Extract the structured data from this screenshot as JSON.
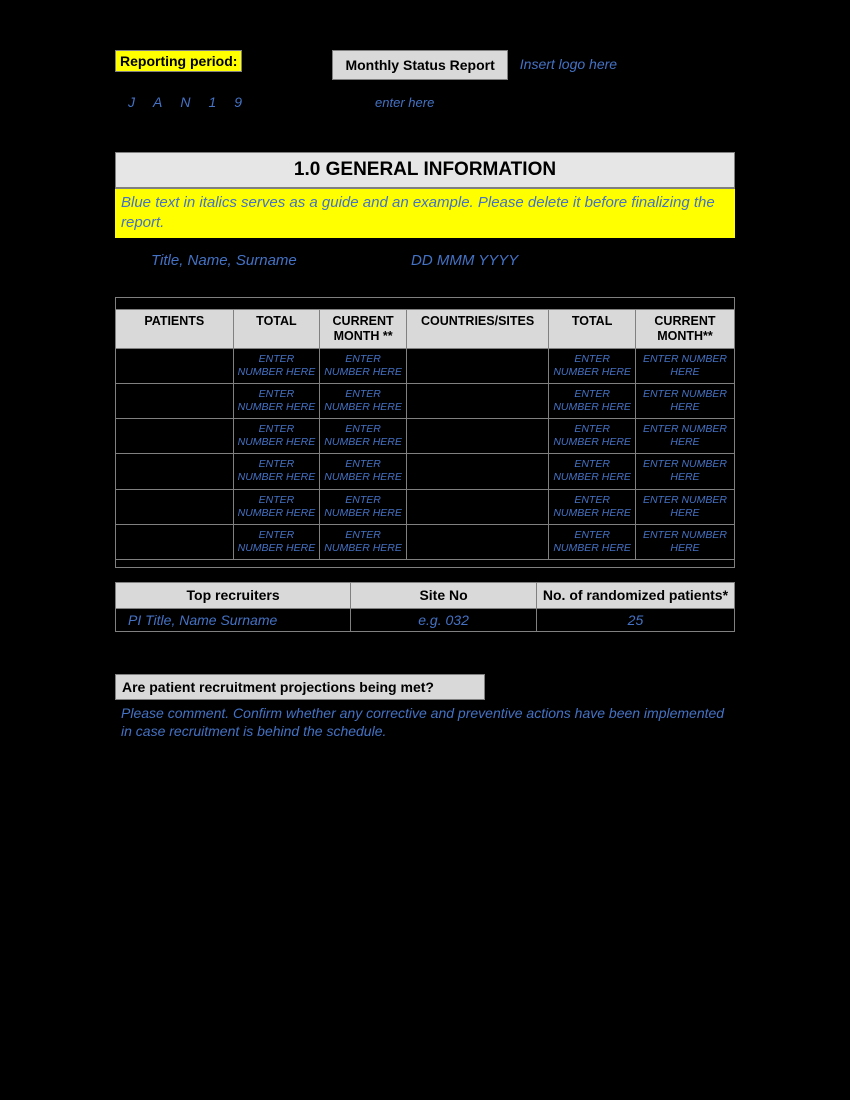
{
  "colors": {
    "bg": "#000000",
    "highlight": "#ffff00",
    "header_bg": "#d9d9d9",
    "section_bg": "#e7e6e6",
    "guide_text": "#4472c4",
    "border": "#808080"
  },
  "header": {
    "reporting_period_label": "Reporting period:",
    "report_title": "Monthly Status Report",
    "logo_placeholder": "Insert logo here",
    "date_chars": "JAN19",
    "enter_here": "enter here"
  },
  "section1": {
    "title": "1.0 GENERAL INFORMATION",
    "guide_text": "Blue text in italics serves as a guide and an example. Please delete it before finalizing the report.",
    "name_placeholder": "Title, Name, Surname",
    "date_placeholder": "DD MMM YYYY"
  },
  "patients_table": {
    "columns": [
      "PATIENTS",
      "TOTAL",
      "CURRENT MONTH **",
      "COUNTRIES/SITES",
      "TOTAL",
      "CURRENT MONTH**"
    ],
    "col_widths": [
      "19%",
      "14%",
      "14%",
      "23%",
      "14%",
      "16%"
    ],
    "placeholder": "ENTER NUMBER HERE",
    "row_count": 6
  },
  "recruiters_table": {
    "columns": [
      "Top recruiters",
      "Site No",
      "No. of randomized patients*"
    ],
    "row": {
      "recruiter": "PI Title, Name Surname",
      "site_no": "e.g. 032",
      "patients": "25"
    }
  },
  "question": {
    "text": "Are patient recruitment projections being met?",
    "guide": "Please comment. Confirm whether any corrective and preventive actions have been implemented in case recruitment is behind the schedule."
  }
}
